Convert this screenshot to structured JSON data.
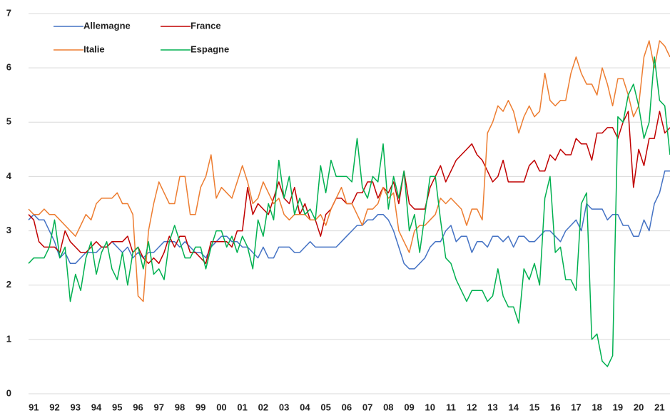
{
  "chart_data": {
    "type": "line",
    "categories": [
      null,
      "91",
      null,
      null,
      null,
      "92",
      null,
      null,
      null,
      "93",
      null,
      null,
      null,
      "94",
      null,
      null,
      null,
      "95",
      null,
      null,
      null,
      "96",
      null,
      null,
      null,
      "97",
      null,
      null,
      null,
      "98",
      null,
      null,
      null,
      "99",
      null,
      null,
      null,
      "00",
      null,
      null,
      null,
      "01",
      null,
      null,
      null,
      "02",
      null,
      null,
      null,
      "03",
      null,
      null,
      null,
      "04",
      null,
      null,
      null,
      "05",
      null,
      null,
      null,
      "06",
      null,
      null,
      null,
      "07",
      null,
      null,
      null,
      "08",
      null,
      null,
      null,
      "09",
      null,
      null,
      null,
      "10",
      null,
      null,
      null,
      "11",
      null,
      null,
      null,
      "12",
      null,
      null,
      null,
      "13",
      null,
      null,
      null,
      "14",
      null,
      null,
      null,
      "15",
      null,
      null,
      null,
      "16",
      null,
      null,
      null,
      "17",
      null,
      null,
      null,
      "18",
      null,
      null,
      null,
      "19",
      null,
      null,
      null,
      "20",
      null,
      null,
      null,
      "21",
      null,
      null
    ],
    "series": [
      {
        "name": "Allemagne",
        "color": "#4472c4",
        "values": [
          3.2,
          3.3,
          3.2,
          3.2,
          3.0,
          2.8,
          2.5,
          2.6,
          2.4,
          2.4,
          2.5,
          2.6,
          2.6,
          2.6,
          2.7,
          2.7,
          2.8,
          2.7,
          2.6,
          2.7,
          2.5,
          2.6,
          2.5,
          2.6,
          2.6,
          2.7,
          2.8,
          2.8,
          2.8,
          2.7,
          2.8,
          2.7,
          2.6,
          2.6,
          2.5,
          2.7,
          2.8,
          2.9,
          2.9,
          2.8,
          2.8,
          2.7,
          2.7,
          2.6,
          2.5,
          2.7,
          2.5,
          2.5,
          2.7,
          2.7,
          2.7,
          2.6,
          2.6,
          2.7,
          2.8,
          2.7,
          2.7,
          2.7,
          2.7,
          2.7,
          2.8,
          2.9,
          3.0,
          3.1,
          3.1,
          3.2,
          3.2,
          3.3,
          3.3,
          3.2,
          3.0,
          2.7,
          2.4,
          2.3,
          2.3,
          2.4,
          2.5,
          2.7,
          2.8,
          2.8,
          3.0,
          3.1,
          2.8,
          2.9,
          2.9,
          2.6,
          2.8,
          2.8,
          2.7,
          2.9,
          2.9,
          2.8,
          2.9,
          2.7,
          2.9,
          2.9,
          2.8,
          2.8,
          2.9,
          3.0,
          3.0,
          2.9,
          2.8,
          3.0,
          3.1,
          3.2,
          3.0,
          3.5,
          3.4,
          3.4,
          3.4,
          3.2,
          3.3,
          3.3,
          3.1,
          3.1,
          2.9,
          2.9,
          3.2,
          3.0,
          3.5,
          3.7,
          4.1,
          4.1
        ]
      },
      {
        "name": "France",
        "color": "#c00000",
        "values": [
          3.3,
          3.2,
          2.8,
          2.7,
          2.7,
          2.7,
          2.6,
          3.0,
          2.8,
          2.7,
          2.6,
          2.6,
          2.7,
          2.8,
          2.7,
          2.7,
          2.8,
          2.8,
          2.8,
          2.9,
          2.6,
          2.7,
          2.5,
          2.4,
          2.5,
          2.4,
          2.6,
          2.9,
          2.7,
          2.9,
          2.9,
          2.6,
          2.6,
          2.5,
          2.4,
          2.8,
          2.8,
          2.8,
          2.8,
          2.7,
          3.0,
          3.0,
          3.8,
          3.3,
          3.5,
          3.4,
          3.3,
          3.6,
          3.9,
          3.6,
          3.5,
          3.8,
          3.3,
          3.5,
          3.2,
          3.2,
          2.9,
          3.3,
          3.4,
          3.6,
          3.6,
          3.5,
          3.5,
          3.7,
          3.7,
          3.9,
          3.9,
          3.6,
          3.8,
          3.7,
          3.9,
          3.5,
          4.1,
          3.5,
          3.4,
          3.4,
          3.4,
          3.8,
          4.0,
          4.2,
          3.9,
          4.1,
          4.3,
          4.4,
          4.5,
          4.6,
          4.4,
          4.3,
          4.1,
          3.9,
          4.0,
          4.3,
          3.9,
          3.9,
          3.9,
          3.9,
          4.2,
          4.3,
          4.1,
          4.1,
          4.4,
          4.3,
          4.5,
          4.4,
          4.4,
          4.7,
          4.6,
          4.6,
          4.3,
          4.8,
          4.8,
          4.9,
          4.9,
          4.7,
          5.0,
          5.2,
          3.8,
          4.5,
          4.2,
          4.7,
          4.7,
          5.2,
          4.8,
          4.9
        ]
      },
      {
        "name": "Italie",
        "color": "#ed7d31",
        "values": [
          3.4,
          3.3,
          3.3,
          3.4,
          3.3,
          3.3,
          3.2,
          3.1,
          3.0,
          2.9,
          3.1,
          3.3,
          3.2,
          3.5,
          3.6,
          3.6,
          3.6,
          3.7,
          3.5,
          3.5,
          3.3,
          1.8,
          1.7,
          3.0,
          3.5,
          3.9,
          3.7,
          3.5,
          3.5,
          4.0,
          4.0,
          3.3,
          3.3,
          3.8,
          4.0,
          4.4,
          3.6,
          3.8,
          3.7,
          3.6,
          3.9,
          4.2,
          3.9,
          3.5,
          3.6,
          3.9,
          3.7,
          3.5,
          3.6,
          3.3,
          3.2,
          3.3,
          3.3,
          3.3,
          3.2,
          3.2,
          3.3,
          3.1,
          3.4,
          3.6,
          3.8,
          3.5,
          3.5,
          3.3,
          3.1,
          3.4,
          3.4,
          3.5,
          3.8,
          3.6,
          3.7,
          3.0,
          2.8,
          2.6,
          3.0,
          3.1,
          3.1,
          3.2,
          3.3,
          3.6,
          3.5,
          3.6,
          3.5,
          3.4,
          3.1,
          3.4,
          3.4,
          3.2,
          4.8,
          5.0,
          5.3,
          5.2,
          5.4,
          5.2,
          4.8,
          5.1,
          5.3,
          5.1,
          5.2,
          5.9,
          5.4,
          5.3,
          5.4,
          5.4,
          5.9,
          6.2,
          5.9,
          5.7,
          5.7,
          5.5,
          6.0,
          5.7,
          5.3,
          5.8,
          5.8,
          5.5,
          5.1,
          5.3,
          6.2,
          6.5,
          6.0,
          6.5,
          6.4,
          6.2
        ]
      },
      {
        "name": "Espagne",
        "color": "#00b050",
        "values": [
          2.4,
          2.5,
          2.5,
          2.5,
          2.7,
          3.2,
          2.5,
          2.7,
          1.7,
          2.2,
          1.9,
          2.5,
          2.8,
          2.2,
          2.6,
          2.8,
          2.3,
          2.1,
          2.6,
          2.0,
          2.6,
          2.7,
          2.3,
          2.8,
          2.2,
          2.3,
          2.1,
          2.8,
          3.1,
          2.8,
          2.5,
          2.5,
          2.7,
          2.7,
          2.3,
          2.7,
          3.0,
          3.0,
          2.7,
          2.9,
          2.6,
          2.9,
          2.7,
          2.3,
          3.2,
          2.9,
          3.5,
          3.2,
          4.3,
          3.6,
          4.0,
          3.3,
          3.6,
          3.3,
          3.4,
          3.2,
          4.2,
          3.7,
          4.3,
          4.0,
          4.0,
          4.0,
          3.9,
          4.7,
          3.8,
          3.6,
          4.0,
          3.9,
          4.6,
          3.4,
          4.0,
          3.6,
          4.1,
          3.0,
          3.3,
          2.6,
          3.3,
          4.0,
          4.0,
          3.2,
          2.5,
          2.4,
          2.1,
          1.9,
          1.7,
          1.9,
          1.9,
          1.9,
          1.7,
          1.8,
          2.3,
          1.8,
          1.6,
          1.6,
          1.3,
          2.3,
          2.1,
          2.4,
          2.0,
          3.6,
          4.0,
          2.6,
          2.7,
          2.1,
          2.1,
          1.9,
          3.5,
          3.7,
          1.0,
          1.1,
          0.6,
          0.5,
          0.7,
          5.1,
          5.0,
          5.5,
          5.7,
          5.3,
          4.7,
          5.0,
          6.2,
          5.4,
          5.3,
          4.4
        ]
      }
    ],
    "ylim": [
      0,
      7
    ],
    "yticks": [
      0,
      1,
      2,
      3,
      4,
      5,
      6,
      7
    ],
    "grid": true,
    "legend": "top-left"
  }
}
